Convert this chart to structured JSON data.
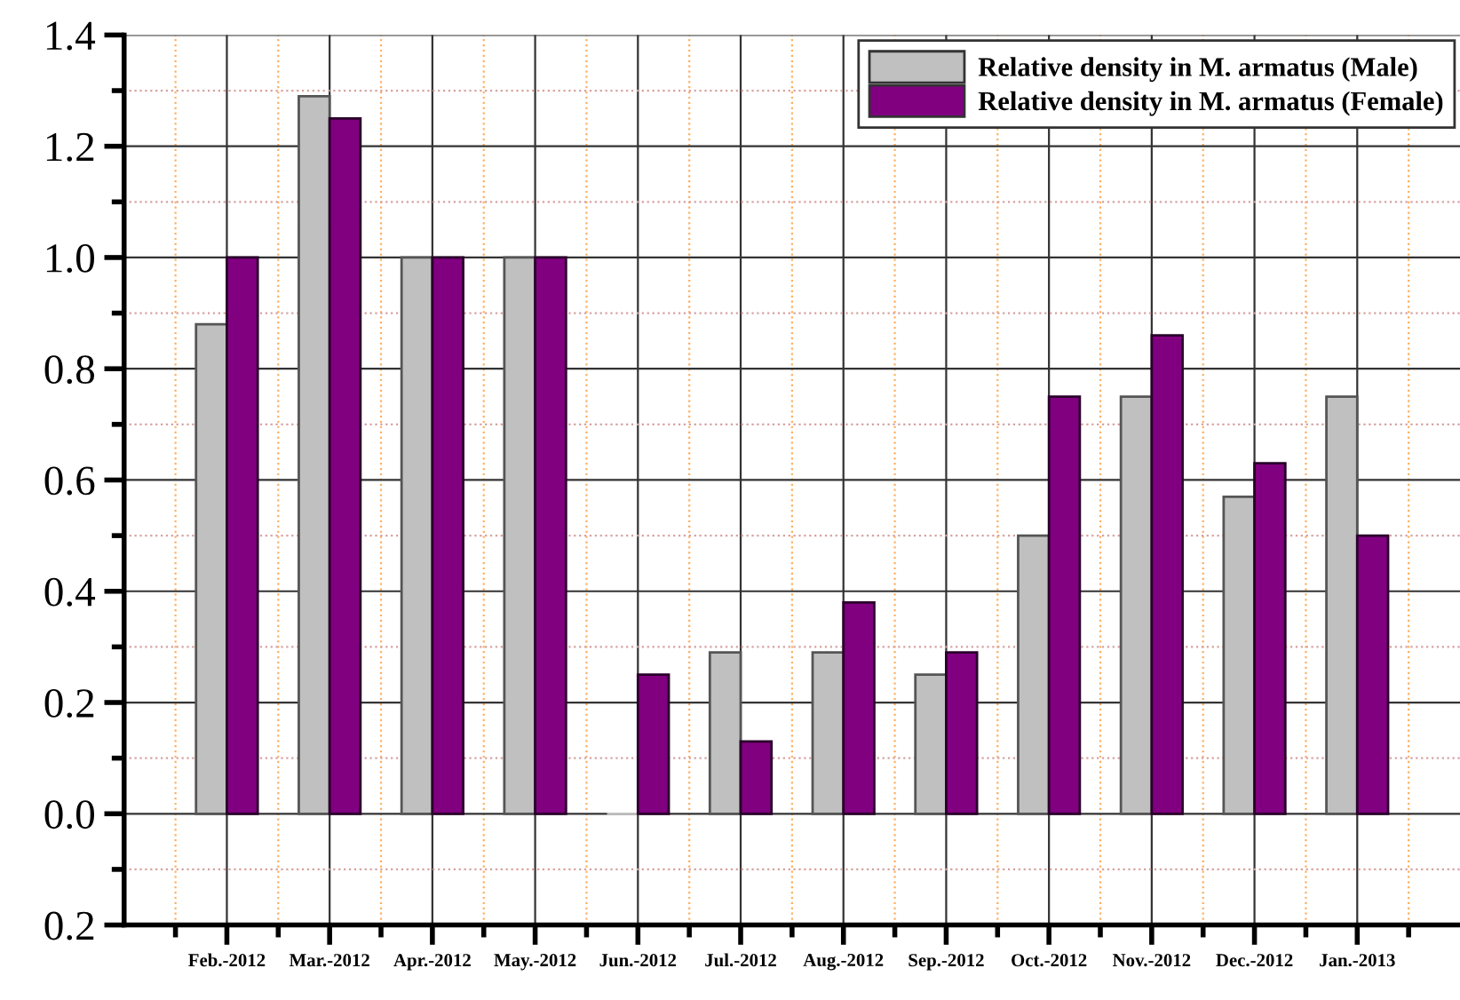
{
  "chart_data": {
    "type": "bar",
    "categories": [
      "Feb.-2012",
      "Mar.-2012",
      "Apr.-2012",
      "May.-2012",
      "Jun.-2012",
      "Jul.-2012",
      "Aug.-2012",
      "Sep.-2012",
      "Oct.-2012",
      "Nov.-2012",
      "Dec.-2012",
      "Jan.-2013"
    ],
    "series": [
      {
        "name": "Relative density in M. armatus (Male)",
        "color": "#c0c0c0",
        "values": [
          0.88,
          1.29,
          1.0,
          1.0,
          0.0,
          0.29,
          0.29,
          0.25,
          0.5,
          0.75,
          0.57,
          0.75
        ]
      },
      {
        "name": "Relative density in M. armatus (Female)",
        "color": "#800080",
        "values": [
          1.0,
          1.25,
          1.0,
          1.0,
          0.25,
          0.13,
          0.38,
          0.29,
          0.75,
          0.86,
          0.63,
          0.5
        ]
      }
    ],
    "ylim": [
      -0.2,
      1.4
    ],
    "yticks": [
      {
        "value": -0.2,
        "label": "0.2"
      },
      {
        "value": -0.1,
        "label": null
      },
      {
        "value": 0.0,
        "label": "0.0"
      },
      {
        "value": 0.1,
        "label": null
      },
      0.2,
      {
        "value": 0.3,
        "label": null
      },
      0.4,
      {
        "value": 0.5,
        "label": null
      },
      0.6,
      {
        "value": 0.7,
        "label": null
      },
      0.8,
      {
        "value": 0.9,
        "label": null
      },
      {
        "value": 1.0,
        "label": "1.0"
      },
      {
        "value": 1.1,
        "label": null
      },
      1.2,
      {
        "value": 1.3,
        "label": null
      },
      1.4
    ],
    "grid": true,
    "legend": "top right"
  }
}
